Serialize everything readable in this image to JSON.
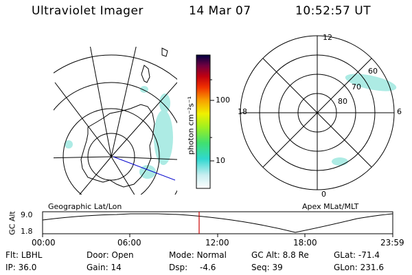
{
  "header": {
    "title": "Ultraviolet Imager",
    "date": "14 Mar 07",
    "time": "10:52:57 UT"
  },
  "geo_panel": {
    "label": "Geographic Lat/Lon"
  },
  "apex_panel": {
    "label": "Apex MLat/MLT",
    "hour_labels": {
      "top": "12",
      "left": "18",
      "right": "6",
      "bottom": "0"
    },
    "lat_labels": [
      "60",
      "70",
      "80"
    ]
  },
  "colorbar": {
    "unit": "photon cm⁻²s⁻¹",
    "ticks": [
      "100",
      "10"
    ]
  },
  "altitude_plot": {
    "ylabel": "GC Alt",
    "yticks": [
      "9.0",
      "1.8"
    ],
    "xticks": [
      "00:00",
      "06:00",
      "12:00",
      "18:00",
      "23:59"
    ],
    "current_marker_time": "10:52"
  },
  "info": {
    "flt": {
      "label": "Flt:",
      "value": "LBHL"
    },
    "ip": {
      "label": "IP:",
      "value": "36.0"
    },
    "door": {
      "label": "Door:",
      "value": "Open"
    },
    "gain": {
      "label": "Gain:",
      "value": "14"
    },
    "mode": {
      "label": "Mode:",
      "value": "Normal"
    },
    "dsp": {
      "label": "Dsp:",
      "value": "-4.6"
    },
    "gcalt": {
      "label": "GC Alt:",
      "value": "8.8 Re"
    },
    "seq": {
      "label": "Seq:",
      "value": "39"
    },
    "glat": {
      "label": "GLat:",
      "value": "-71.4"
    },
    "glon": {
      "label": "GLon:",
      "value": "231.6"
    }
  },
  "colors": {
    "emission": "#9fe8e0",
    "red_marker": "#cc0000",
    "track": "#0000cc"
  }
}
